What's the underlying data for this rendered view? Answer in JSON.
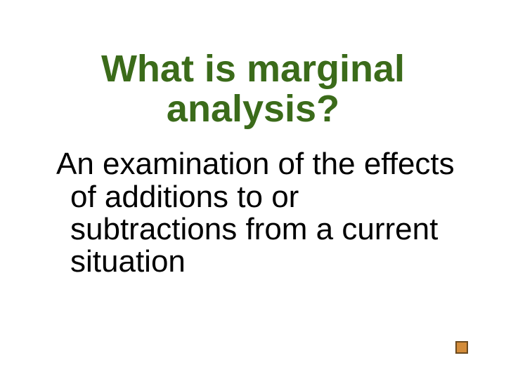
{
  "slide": {
    "title": "What is marginal analysis?",
    "title_color": "#3b6b1a",
    "title_fontsize": 54,
    "title_fontweight": "bold",
    "body": "An examination of the effects of additions to or subtractions from a current situation",
    "body_color": "#000000",
    "body_fontsize": 44,
    "background_color": "#ffffff"
  },
  "action_button": {
    "icon": "square",
    "fill_color": "#d38c3a",
    "border_color": "#6b4a1f",
    "size": 18,
    "border_width": 2
  }
}
